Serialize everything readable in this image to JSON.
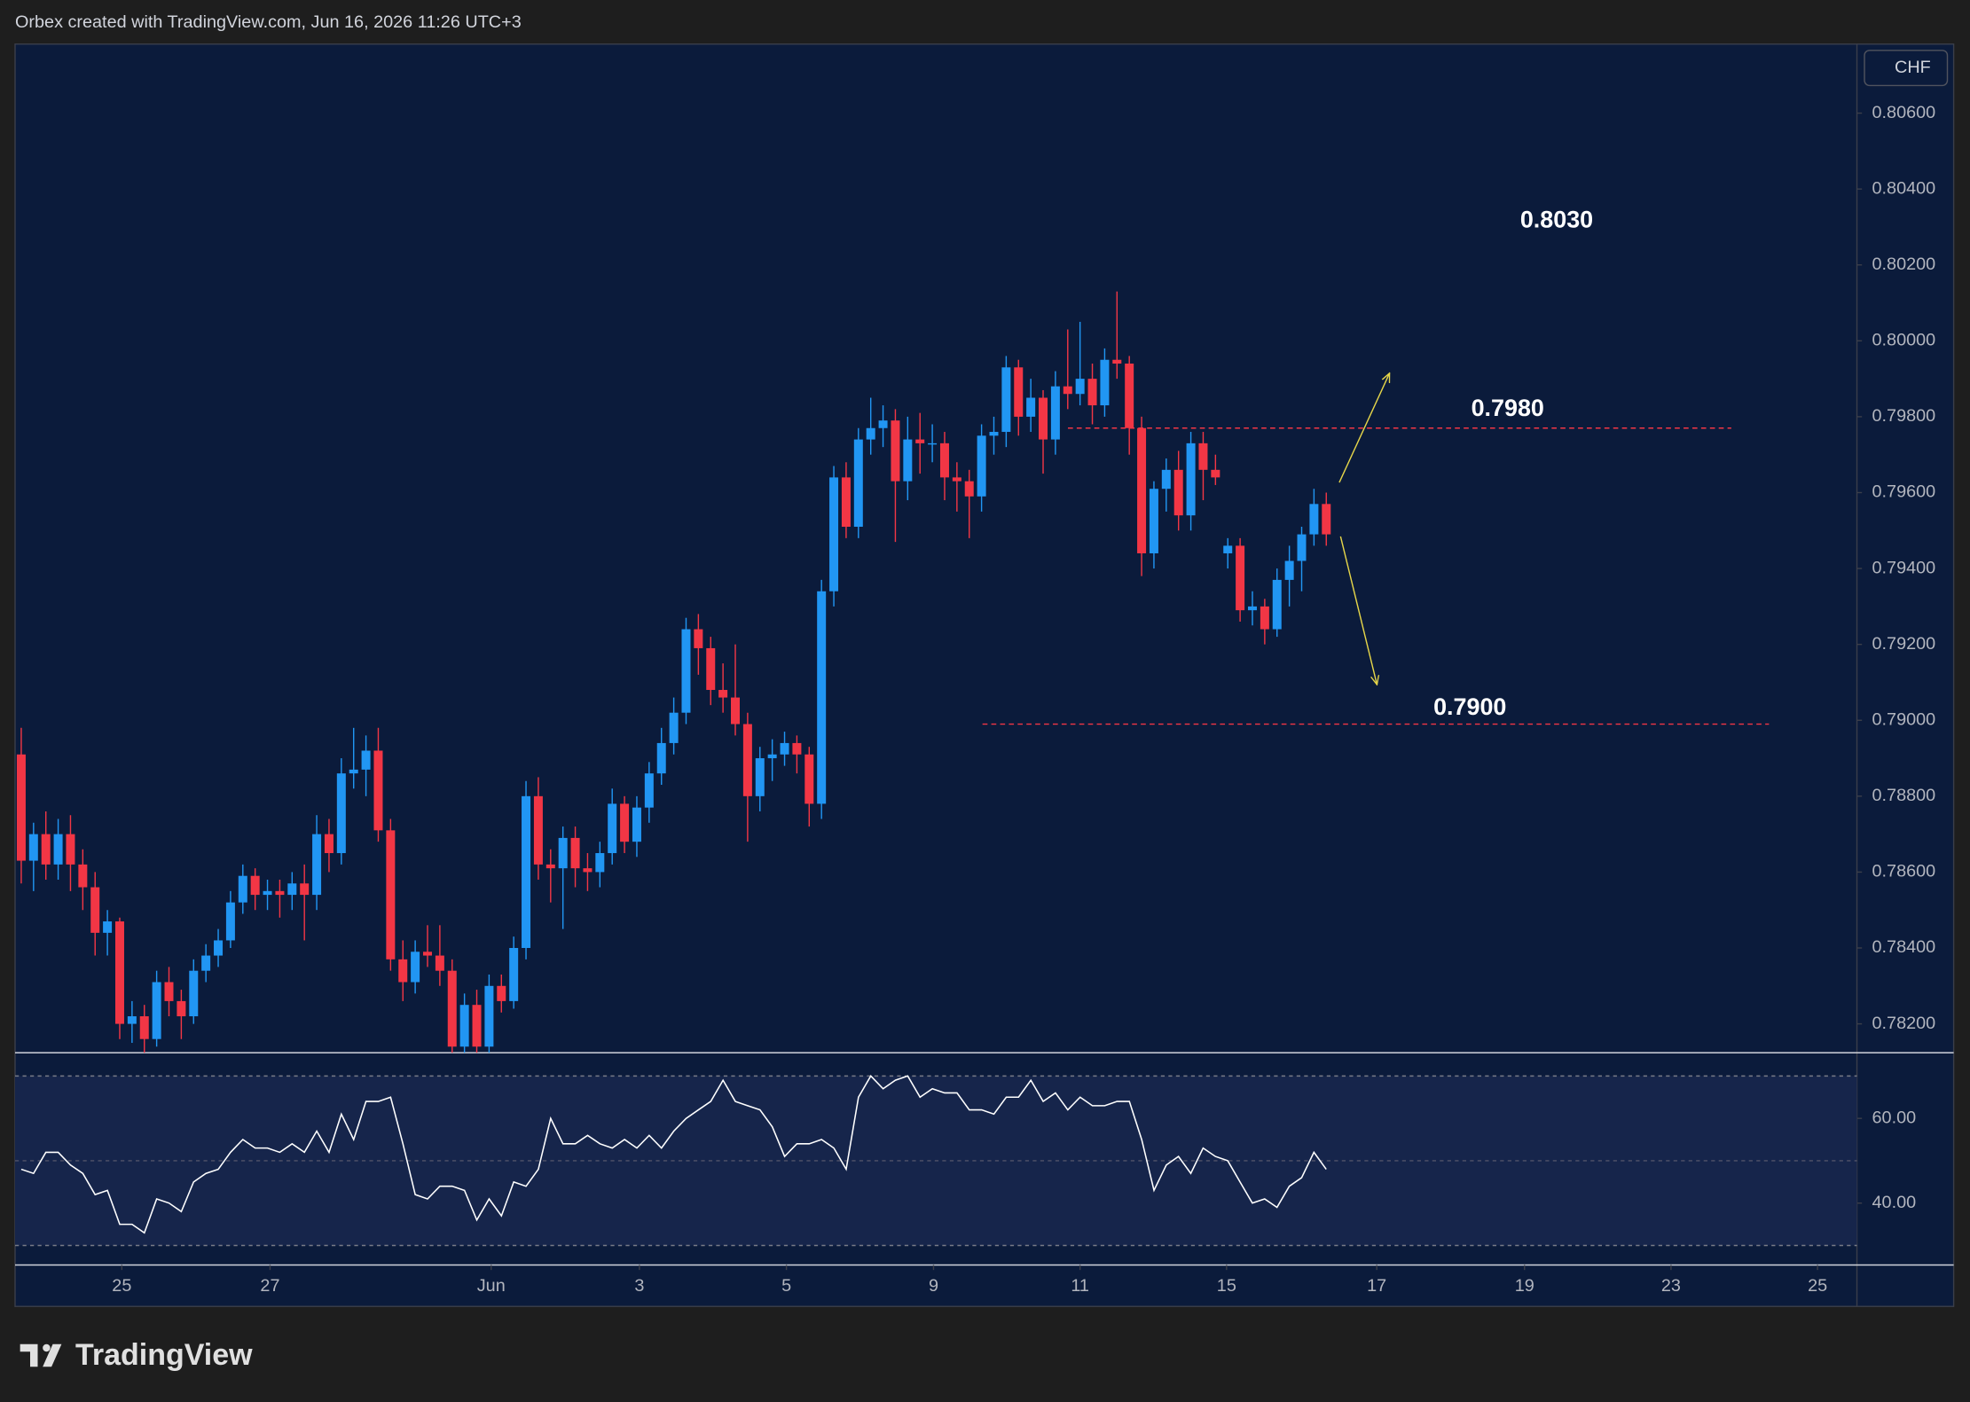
{
  "header": {
    "text": "Orbex created with TradingView.com, Jun 16, 2026 11:26 UTC+3"
  },
  "currency": "CHF",
  "logo": "TradingView",
  "chart_data": [
    {
      "type": "candlestick",
      "up_color": "#2196f3",
      "down_color": "#f23645",
      "xlim": [
        0,
        149.6
      ],
      "xticks": [
        {
          "value": 8.67,
          "label": "25"
        },
        {
          "value": 20.71,
          "label": "27"
        },
        {
          "value": 38.67,
          "label": "Jun"
        },
        {
          "value": 50.71,
          "label": "3"
        },
        {
          "value": 62.65,
          "label": "5"
        },
        {
          "value": 74.6,
          "label": "9"
        },
        {
          "value": 86.5,
          "label": "11"
        },
        {
          "value": 98.4,
          "label": "15"
        },
        {
          "value": 110.6,
          "label": "17"
        },
        {
          "value": 122.6,
          "label": "19"
        },
        {
          "value": 134.5,
          "label": "23"
        },
        {
          "value": 146.4,
          "label": "25"
        }
      ],
      "ylim": [
        0.78124,
        0.80782
      ],
      "yticks": [
        {
          "value": 0.806,
          "label": "0.80600"
        },
        {
          "value": 0.804,
          "label": "0.80400"
        },
        {
          "value": 0.802,
          "label": "0.80200"
        },
        {
          "value": 0.8,
          "label": "0.80000"
        },
        {
          "value": 0.798,
          "label": "0.79800"
        },
        {
          "value": 0.796,
          "label": "0.79600"
        },
        {
          "value": 0.794,
          "label": "0.79400"
        },
        {
          "value": 0.792,
          "label": "0.79200"
        },
        {
          "value": 0.79,
          "label": "0.79000"
        },
        {
          "value": 0.788,
          "label": "0.78800"
        },
        {
          "value": 0.786,
          "label": "0.78600"
        },
        {
          "value": 0.784,
          "label": "0.78400"
        },
        {
          "value": 0.782,
          "label": "0.78200"
        }
      ],
      "grid": false,
      "levels": [
        0.7977,
        0.7899
      ],
      "level_color": "#f23645",
      "annotations": [
        "0.8030",
        "0.7980",
        "0.7900"
      ],
      "ohlc": [
        [
          0.7891,
          0.7898,
          0.7857,
          0.7863
        ],
        [
          0.7863,
          0.7873,
          0.7855,
          0.787
        ],
        [
          0.787,
          0.7876,
          0.7858,
          0.7862
        ],
        [
          0.7862,
          0.7874,
          0.7858,
          0.787
        ],
        [
          0.787,
          0.7875,
          0.7855,
          0.7862
        ],
        [
          0.7862,
          0.7866,
          0.785,
          0.7856
        ],
        [
          0.7856,
          0.786,
          0.7838,
          0.7844
        ],
        [
          0.7844,
          0.785,
          0.7838,
          0.7847
        ],
        [
          0.7847,
          0.7848,
          0.7816,
          0.782
        ],
        [
          0.782,
          0.7826,
          0.7815,
          0.7822
        ],
        [
          0.7822,
          0.7825,
          0.7812,
          0.7816
        ],
        [
          0.7816,
          0.7834,
          0.7814,
          0.7831
        ],
        [
          0.7831,
          0.7835,
          0.7822,
          0.7826
        ],
        [
          0.7826,
          0.7829,
          0.7816,
          0.7822
        ],
        [
          0.7822,
          0.7837,
          0.782,
          0.7834
        ],
        [
          0.7834,
          0.7841,
          0.7831,
          0.7838
        ],
        [
          0.7838,
          0.7845,
          0.7835,
          0.7842
        ],
        [
          0.7842,
          0.7855,
          0.784,
          0.7852
        ],
        [
          0.7852,
          0.7862,
          0.7849,
          0.7859
        ],
        [
          0.7859,
          0.7861,
          0.785,
          0.7854
        ],
        [
          0.7854,
          0.7858,
          0.785,
          0.7855
        ],
        [
          0.7855,
          0.7858,
          0.7848,
          0.7854
        ],
        [
          0.7854,
          0.786,
          0.785,
          0.7857
        ],
        [
          0.7857,
          0.7862,
          0.7842,
          0.7854
        ],
        [
          0.7854,
          0.7875,
          0.785,
          0.787
        ],
        [
          0.787,
          0.7874,
          0.786,
          0.7865
        ],
        [
          0.7865,
          0.789,
          0.7862,
          0.7886
        ],
        [
          0.7886,
          0.7898,
          0.7882,
          0.7887
        ],
        [
          0.7887,
          0.7896,
          0.788,
          0.7892
        ],
        [
          0.7892,
          0.7898,
          0.7868,
          0.7871
        ],
        [
          0.7871,
          0.7874,
          0.7834,
          0.7837
        ],
        [
          0.7837,
          0.7842,
          0.7826,
          0.7831
        ],
        [
          0.7831,
          0.7842,
          0.7828,
          0.7839
        ],
        [
          0.7839,
          0.7846,
          0.7835,
          0.7838
        ],
        [
          0.7838,
          0.7846,
          0.783,
          0.7834
        ],
        [
          0.7834,
          0.7837,
          0.7812,
          0.7814
        ],
        [
          0.7814,
          0.7828,
          0.7811,
          0.7825
        ],
        [
          0.7825,
          0.7829,
          0.7811,
          0.7814
        ],
        [
          0.7814,
          0.7833,
          0.7812,
          0.783
        ],
        [
          0.783,
          0.7833,
          0.7823,
          0.7826
        ],
        [
          0.7826,
          0.7843,
          0.7824,
          0.784
        ],
        [
          0.784,
          0.7884,
          0.7837,
          0.788
        ],
        [
          0.788,
          0.7885,
          0.7858,
          0.7862
        ],
        [
          0.7862,
          0.7866,
          0.7852,
          0.7861
        ],
        [
          0.7861,
          0.7872,
          0.7845,
          0.7869
        ],
        [
          0.7869,
          0.7872,
          0.7856,
          0.7861
        ],
        [
          0.7861,
          0.7865,
          0.7855,
          0.786
        ],
        [
          0.786,
          0.7868,
          0.7856,
          0.7865
        ],
        [
          0.7865,
          0.7882,
          0.7862,
          0.7878
        ],
        [
          0.7878,
          0.788,
          0.7865,
          0.7868
        ],
        [
          0.7868,
          0.788,
          0.7864,
          0.7877
        ],
        [
          0.7877,
          0.7889,
          0.7873,
          0.7886
        ],
        [
          0.7886,
          0.7898,
          0.7883,
          0.7894
        ],
        [
          0.7894,
          0.7906,
          0.7891,
          0.7902
        ],
        [
          0.7902,
          0.7927,
          0.7899,
          0.7924
        ],
        [
          0.7924,
          0.7928,
          0.7912,
          0.7919
        ],
        [
          0.7919,
          0.7922,
          0.7904,
          0.7908
        ],
        [
          0.7908,
          0.7915,
          0.7902,
          0.7906
        ],
        [
          0.7906,
          0.792,
          0.7896,
          0.7899
        ],
        [
          0.7899,
          0.7902,
          0.7868,
          0.788
        ],
        [
          0.788,
          0.7893,
          0.7876,
          0.789
        ],
        [
          0.789,
          0.7895,
          0.7884,
          0.7891
        ],
        [
          0.7891,
          0.7897,
          0.7888,
          0.7894
        ],
        [
          0.7894,
          0.7896,
          0.7886,
          0.7891
        ],
        [
          0.7891,
          0.7893,
          0.7872,
          0.7878
        ],
        [
          0.7878,
          0.7937,
          0.7874,
          0.7934
        ],
        [
          0.7934,
          0.7967,
          0.793,
          0.7964
        ],
        [
          0.7964,
          0.7968,
          0.7948,
          0.7951
        ],
        [
          0.7951,
          0.7977,
          0.7948,
          0.7974
        ],
        [
          0.7974,
          0.7985,
          0.797,
          0.7977
        ],
        [
          0.7977,
          0.7983,
          0.7972,
          0.7979
        ],
        [
          0.7979,
          0.7982,
          0.7947,
          0.7963
        ],
        [
          0.7963,
          0.798,
          0.7958,
          0.7974
        ],
        [
          0.7974,
          0.7981,
          0.7965,
          0.7973
        ],
        [
          0.7973,
          0.7978,
          0.7968,
          0.7973
        ],
        [
          0.7973,
          0.7976,
          0.7958,
          0.7964
        ],
        [
          0.7964,
          0.7968,
          0.7955,
          0.7963
        ],
        [
          0.7963,
          0.7966,
          0.7948,
          0.7959
        ],
        [
          0.7959,
          0.7978,
          0.7955,
          0.7975
        ],
        [
          0.7975,
          0.798,
          0.797,
          0.7976
        ],
        [
          0.7976,
          0.7996,
          0.7972,
          0.7993
        ],
        [
          0.7993,
          0.7995,
          0.7975,
          0.798
        ],
        [
          0.798,
          0.799,
          0.7976,
          0.7985
        ],
        [
          0.7985,
          0.7987,
          0.7965,
          0.7974
        ],
        [
          0.7974,
          0.7992,
          0.797,
          0.7988
        ],
        [
          0.7988,
          0.8003,
          0.7982,
          0.7986
        ],
        [
          0.7986,
          0.8005,
          0.7983,
          0.799
        ],
        [
          0.799,
          0.7994,
          0.7978,
          0.7983
        ],
        [
          0.7983,
          0.7998,
          0.798,
          0.7995
        ],
        [
          0.7995,
          0.8013,
          0.799,
          0.7994
        ],
        [
          0.7994,
          0.7996,
          0.797,
          0.7977
        ],
        [
          0.7977,
          0.798,
          0.7938,
          0.7944
        ],
        [
          0.7944,
          0.7963,
          0.794,
          0.7961
        ],
        [
          0.7961,
          0.7969,
          0.7955,
          0.7966
        ],
        [
          0.7966,
          0.7971,
          0.795,
          0.7954
        ],
        [
          0.7954,
          0.7976,
          0.795,
          0.7973
        ],
        [
          0.7973,
          0.7976,
          0.7958,
          0.7966
        ],
        [
          0.7966,
          0.797,
          0.7962,
          0.7964
        ],
        [
          0.7944,
          0.7948,
          0.794,
          0.7946
        ],
        [
          0.7946,
          0.7948,
          0.7926,
          0.7929
        ],
        [
          0.7929,
          0.7934,
          0.7925,
          0.793
        ],
        [
          0.793,
          0.7932,
          0.792,
          0.7924
        ],
        [
          0.7924,
          0.794,
          0.7922,
          0.7937
        ],
        [
          0.7937,
          0.7946,
          0.793,
          0.7942
        ],
        [
          0.7942,
          0.7951,
          0.7934,
          0.7949
        ],
        [
          0.7949,
          0.7961,
          0.7946,
          0.7957
        ],
        [
          0.7957,
          0.796,
          0.7946,
          0.7949
        ]
      ]
    },
    {
      "type": "line",
      "color": "#ffffff",
      "band": [
        30,
        70
      ],
      "midline": 50,
      "band_color": "#16254b",
      "ylim": [
        25.4,
        75.2
      ],
      "yticks": [
        {
          "value": 60,
          "label": "60.00"
        },
        {
          "value": 40,
          "label": "40.00"
        }
      ],
      "values": [
        48,
        47,
        52,
        52,
        49,
        47,
        42,
        43,
        35,
        35,
        33,
        41,
        40,
        38,
        45,
        47,
        48,
        52,
        55,
        53,
        53,
        52,
        54,
        52,
        57,
        52,
        61,
        55,
        64,
        64,
        65,
        54,
        42,
        41,
        44,
        44,
        43,
        36,
        41,
        37,
        45,
        44,
        48,
        60,
        54,
        54,
        56,
        54,
        53,
        55,
        53,
        56,
        53,
        57,
        60,
        62,
        64,
        69,
        64,
        63,
        62,
        58,
        51,
        54,
        54,
        55,
        53,
        48,
        65,
        70,
        67,
        69,
        70,
        65,
        67,
        66,
        66,
        62,
        62,
        61,
        65,
        65,
        69,
        64,
        66,
        62,
        65,
        63,
        63,
        64,
        64,
        55,
        43,
        49,
        51,
        47,
        53,
        51,
        50,
        45,
        40,
        41,
        39,
        44,
        46,
        52,
        48
      ]
    }
  ]
}
